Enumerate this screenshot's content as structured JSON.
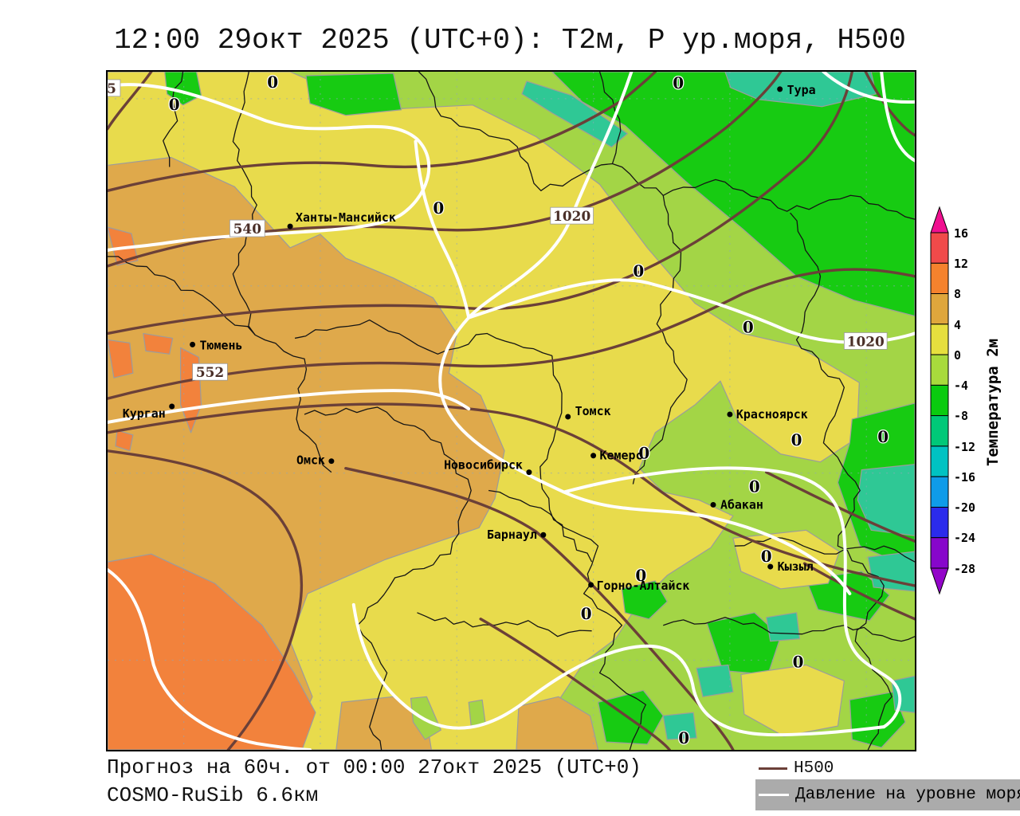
{
  "title": "12:00 29окт 2025 (UTC+0): Т2м, P ур.моря, H500",
  "map": {
    "cities": [
      {
        "name": "Тура"
      },
      {
        "name": "Ханты-Мансийск"
      },
      {
        "name": "Тюмень"
      },
      {
        "name": "Курган"
      },
      {
        "name": "Омск"
      },
      {
        "name": "Томск"
      },
      {
        "name": "Красноярск"
      },
      {
        "name": "Новосибирск"
      },
      {
        "name": "Кемерс"
      },
      {
        "name": "Абакан"
      },
      {
        "name": "Барнаул"
      },
      {
        "name": "Горно-Алтайск"
      },
      {
        "name": "Кызыл"
      }
    ],
    "h500_labels": {
      "edge": "5",
      "l540": "540",
      "l552": "552"
    },
    "pressure_labels": {
      "nw": "1020",
      "e": "1020"
    },
    "zero_label": "0",
    "palette": {
      "yellow": "#E8DB4C",
      "tan": "#DFA94B",
      "orange": "#F2823C",
      "light_green": "#A3D546",
      "green": "#17CB12",
      "teal": "#2FC895",
      "contour_h500": "#6B4038",
      "contour_pressure": "#FFFFFF",
      "border": "#151515"
    }
  },
  "colorbar": {
    "title": "Температура 2м",
    "ticks": [
      "16",
      "12",
      "8",
      "4",
      "0",
      "-4",
      "-8",
      "-12",
      "-16",
      "-20",
      "-24",
      "-28"
    ],
    "segments": [
      "#F04A4A",
      "#F5822D",
      "#DFA63C",
      "#E6DF3E",
      "#A8DA3C",
      "#0ACB0F",
      "#00C878",
      "#00C2C2",
      "#0F9BE8",
      "#2B2BEB",
      "#8706CB"
    ],
    "arrow_top": "#F01090",
    "arrow_bottom": "#9305C9"
  },
  "footer": {
    "line1": "Прогноз на 60ч. от 00:00 27окт 2025 (UTC+0)",
    "line2": "COSMO-RuSib 6.6км"
  },
  "legend": {
    "h500": "H500",
    "pressure": "Давление на уровне моря"
  }
}
